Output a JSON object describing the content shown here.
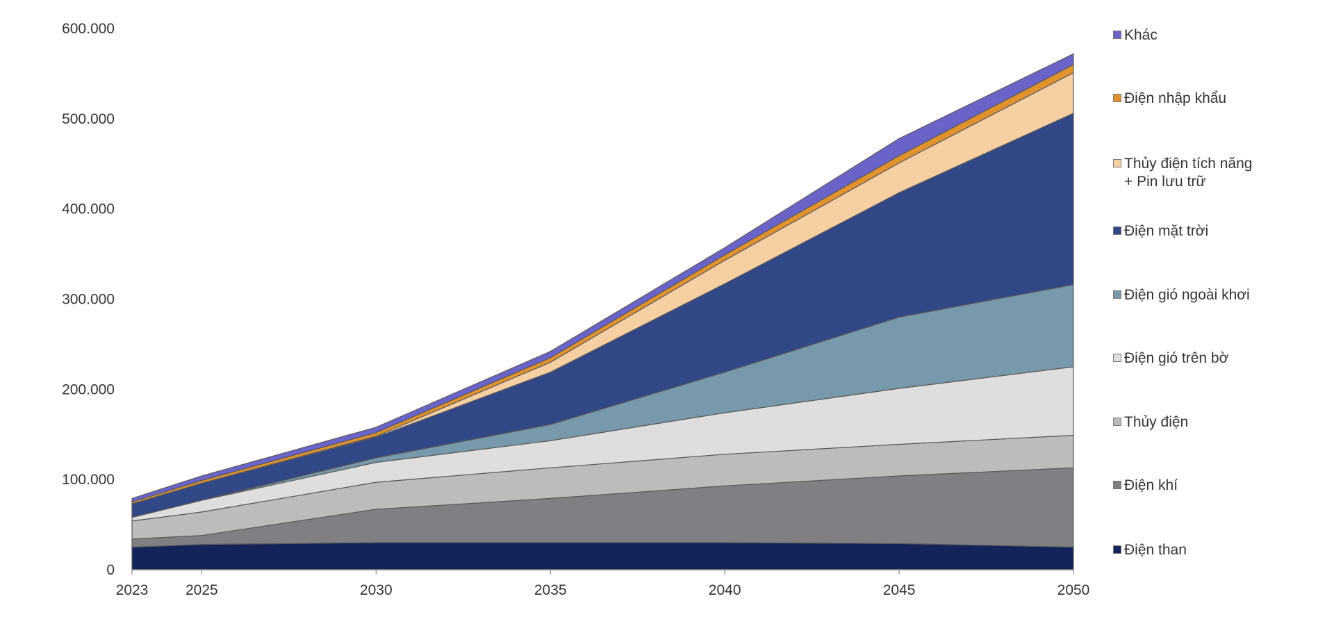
{
  "chart_data": {
    "type": "area",
    "stacked": true,
    "title": "",
    "xlabel": "",
    "ylabel": "",
    "x": [
      2023,
      2025,
      2030,
      2035,
      2040,
      2045,
      2050
    ],
    "x_tick_labels": [
      "2023",
      "2025",
      "2030",
      "2035",
      "2040",
      "2045",
      "2050"
    ],
    "ylim": [
      0,
      600000
    ],
    "y_ticks": [
      0,
      100000,
      200000,
      300000,
      400000,
      500000,
      600000
    ],
    "y_tick_labels": [
      "0",
      "100.000",
      "200.000",
      "300.000",
      "400.000",
      "500.000",
      "600.000"
    ],
    "grid": false,
    "legend_position": "right",
    "series": [
      {
        "name": "Điện than",
        "color": "#14245a",
        "values": [
          25000,
          28000,
          30000,
          30000,
          30000,
          29000,
          25000
        ]
      },
      {
        "name": "Điện khí",
        "color": "#7f8084",
        "values": [
          9000,
          10000,
          37000,
          49000,
          63000,
          75000,
          88000
        ]
      },
      {
        "name": "Thủy điện",
        "color": "#bcbcbc",
        "values": [
          20000,
          26000,
          30000,
          34000,
          35000,
          35000,
          36000
        ]
      },
      {
        "name": "Điện gió trên bờ",
        "color": "#dedede",
        "values": [
          4000,
          13000,
          22000,
          30000,
          46000,
          62000,
          76000
        ]
      },
      {
        "name": "Điện gió ngoài khơi",
        "color": "#7898ab",
        "values": [
          0,
          0,
          5000,
          18000,
          45000,
          79000,
          91000
        ]
      },
      {
        "name": "Điện mặt trời",
        "color": "#324785",
        "values": [
          15000,
          19000,
          23000,
          58000,
          98000,
          138000,
          190000
        ]
      },
      {
        "name": "Thủy điện tích năng\n+ Pin lưu trữ",
        "color": "#f6cfa2",
        "values": [
          0,
          0,
          1000,
          11000,
          26000,
          33000,
          45000
        ]
      },
      {
        "name": "Điện nhập khẩu",
        "color": "#e0922e",
        "values": [
          2000,
          3000,
          4000,
          5000,
          6000,
          8000,
          9000
        ]
      },
      {
        "name": "Khác",
        "color": "#6a64c8",
        "values": [
          4000,
          5000,
          6000,
          7000,
          8000,
          19000,
          12000
        ]
      }
    ]
  }
}
